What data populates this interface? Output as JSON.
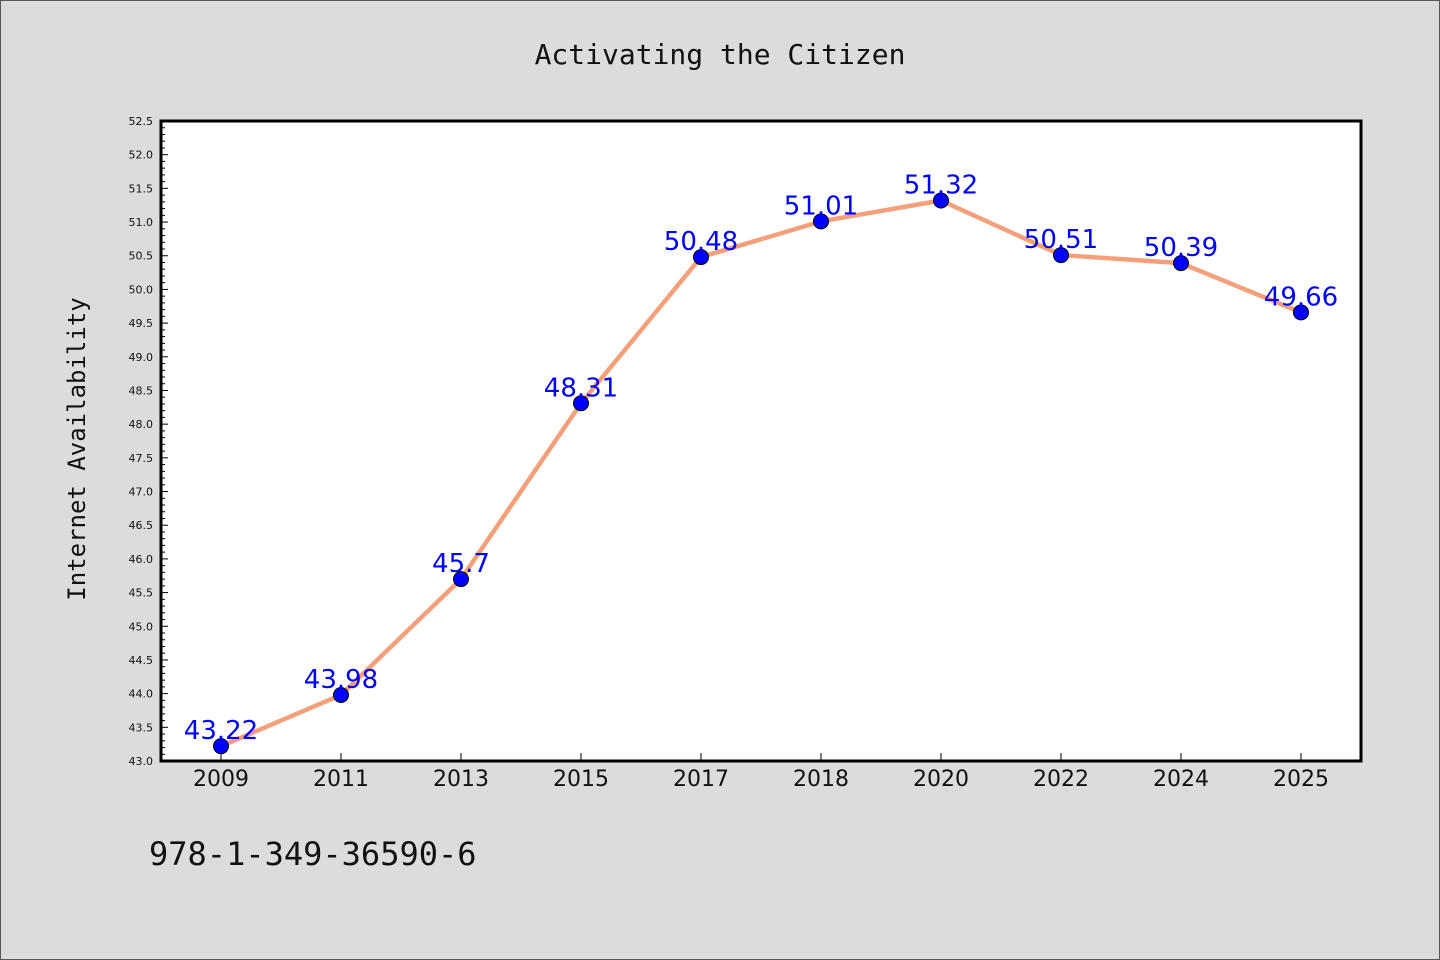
{
  "chart_data": {
    "type": "line",
    "title": "Activating the Citizen",
    "xlabel": "",
    "ylabel": "Internet Availability",
    "categories": [
      "2009",
      "2011",
      "2013",
      "2015",
      "2017",
      "2018",
      "2020",
      "2022",
      "2024",
      "2025"
    ],
    "series": [
      {
        "values": [
          43.22,
          43.98,
          45.7,
          48.31,
          50.48,
          51.01,
          51.32,
          50.51,
          50.39,
          49.66
        ],
        "data_labels": [
          "43.22",
          "43.98",
          "45.7",
          "48.31",
          "50.48",
          "51.01",
          "51.32",
          "50.51",
          "50.39",
          "49.66"
        ],
        "line_color": "#f4a07a",
        "marker_color": "#0000ff"
      }
    ],
    "ylim": [
      43.0,
      52.5
    ],
    "yticks": [
      "43.0",
      "43.5",
      "44.0",
      "44.5",
      "45.0",
      "45.5",
      "46.0",
      "46.5",
      "47.0",
      "47.5",
      "48.0",
      "48.5",
      "49.0",
      "49.5",
      "50.0",
      "50.5",
      "51.0",
      "51.5",
      "52.0",
      "52.5"
    ],
    "grid": false,
    "legend": "none",
    "label_color": "#0000ff",
    "background_color": "#dcdcdc",
    "plot_background": "#ffffff"
  },
  "footer": {
    "text": "978-1-349-36590-6"
  }
}
